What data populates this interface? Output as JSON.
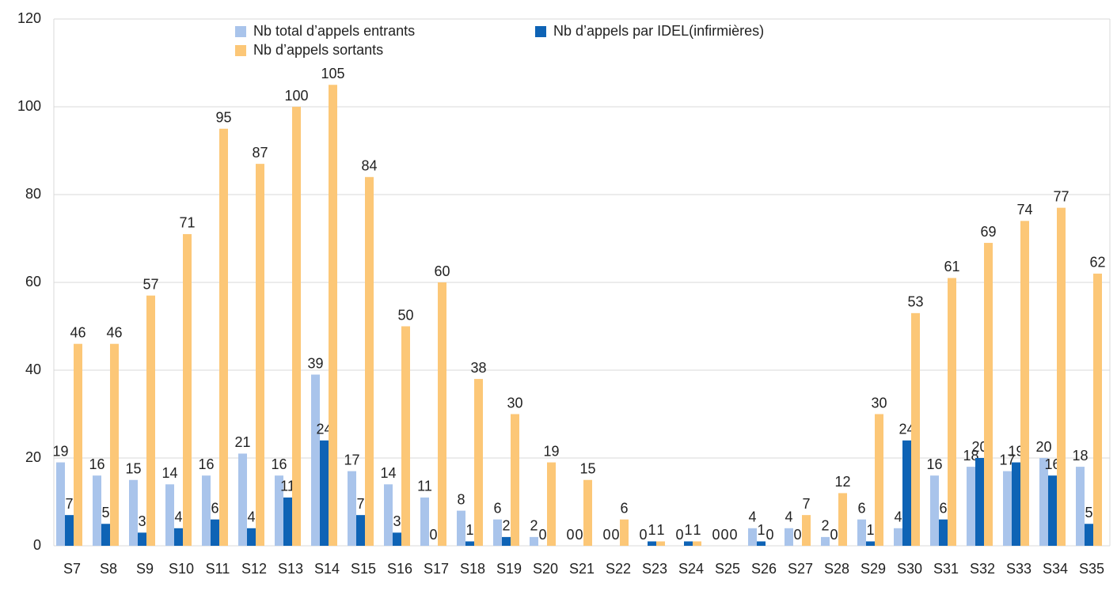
{
  "chart_data": {
    "type": "bar",
    "categories": [
      "S7",
      "S8",
      "S9",
      "S10",
      "S11",
      "S12",
      "S13",
      "S14",
      "S15",
      "S16",
      "S17",
      "S18",
      "S19",
      "S20",
      "S21",
      "S22",
      "S23",
      "S24",
      "S25",
      "S26",
      "S27",
      "S28",
      "S29",
      "S30",
      "S31",
      "S32",
      "S33",
      "S34",
      "S35"
    ],
    "series": [
      {
        "name": "Nb total d’appels entrants",
        "color": "#a9c4eb",
        "values": [
          19,
          16,
          15,
          14,
          16,
          21,
          16,
          39,
          17,
          14,
          11,
          8,
          6,
          2,
          0,
          0,
          0,
          0,
          0,
          4,
          4,
          2,
          6,
          4,
          16,
          18,
          17,
          20,
          18
        ]
      },
      {
        "name": "Nb d’appels par IDEL(infirmières)",
        "color": "#0e63b5",
        "values": [
          7,
          5,
          3,
          4,
          6,
          4,
          11,
          24,
          7,
          3,
          0,
          1,
          2,
          0,
          0,
          0,
          1,
          1,
          0,
          1,
          0,
          0,
          1,
          24,
          6,
          20,
          19,
          16,
          5
        ]
      },
      {
        "name": "Nb d’appels sortants",
        "color": "#fcc777",
        "values": [
          46,
          46,
          57,
          71,
          95,
          87,
          100,
          105,
          84,
          50,
          60,
          38,
          30,
          19,
          15,
          6,
          1,
          1,
          0,
          0,
          7,
          12,
          30,
          53,
          61,
          69,
          74,
          77,
          62
        ]
      }
    ],
    "ylim": [
      0,
      120
    ],
    "yticks": [
      0,
      20,
      40,
      60,
      80,
      100,
      120
    ],
    "grid": true,
    "legend": "top"
  }
}
